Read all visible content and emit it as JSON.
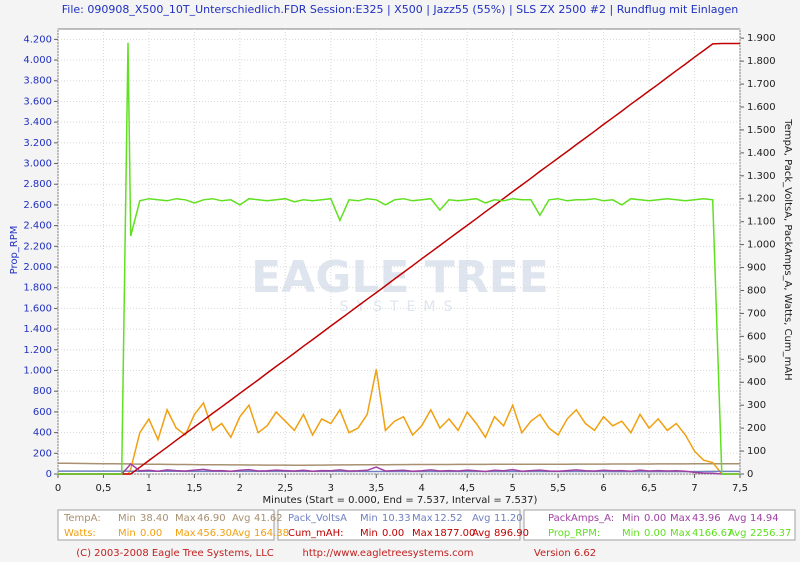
{
  "chart_data": {
    "type": "line",
    "title": "File: 090908_X500_10T_Unterschiedlich.FDR   Session:E325 | X500 | Jazz55 (55%) | SLS ZX 2500 #2 | Rundflug mit Einlagen",
    "x_label": "Minutes (Start = 0.000,  End = 7.537,  Interval = 7.537)",
    "y_label": "Prop_RPM",
    "y2_label": "TempA, Pack_VoltsA, PackAmps_A, Watts, Cum_mAH",
    "watermark": [
      "EAGLE TREE",
      "SYSTEMS"
    ],
    "footer": [
      "(C) 2003-2008 Eagle Tree Systems, LLC",
      "http://www.eagletreesystems.com",
      "Version 6.62"
    ],
    "stat_labels": [
      "Min",
      "Max",
      "Avg"
    ],
    "grid": true,
    "xlim": [
      0,
      7.5
    ],
    "xticks": [
      0,
      {
        "value": 0.5,
        "label": "0,5"
      },
      1,
      {
        "value": 1.5,
        "label": "1,5"
      },
      2,
      {
        "value": 2.5,
        "label": "2,5"
      },
      3,
      {
        "value": 3.5,
        "label": "3,5"
      },
      4,
      {
        "value": 4.5,
        "label": "4,5"
      },
      5,
      {
        "value": 5.5,
        "label": "5,5"
      },
      6,
      {
        "value": 6.5,
        "label": "6,5"
      },
      7,
      {
        "value": 7.5,
        "label": "7,5"
      }
    ],
    "ylim": [
      0,
      4300
    ],
    "yticks": [
      0,
      200,
      400,
      600,
      800,
      {
        "value": 1000,
        "label": "1.000"
      },
      {
        "value": 1200,
        "label": "1.200"
      },
      {
        "value": 1400,
        "label": "1.400"
      },
      {
        "value": 1600,
        "label": "1.600"
      },
      {
        "value": 1800,
        "label": "1.800"
      },
      {
        "value": 2000,
        "label": "2.000"
      },
      {
        "value": 2200,
        "label": "2.200"
      },
      {
        "value": 2400,
        "label": "2.400"
      },
      {
        "value": 2600,
        "label": "2.600"
      },
      {
        "value": 2800,
        "label": "2.800"
      },
      {
        "value": 3000,
        "label": "3.000"
      },
      {
        "value": 3200,
        "label": "3.200"
      },
      {
        "value": 3400,
        "label": "3.400"
      },
      {
        "value": 3600,
        "label": "3.600"
      },
      {
        "value": 3800,
        "label": "3.800"
      },
      {
        "value": 4000,
        "label": "4.000"
      },
      {
        "value": 4200,
        "label": "4.200"
      }
    ],
    "y2lim": [
      0,
      1940
    ],
    "y2ticks": [
      0,
      100,
      200,
      300,
      400,
      500,
      600,
      700,
      800,
      900,
      {
        "value": 1000,
        "label": "1.000"
      },
      {
        "value": 1100,
        "label": "1.100"
      },
      {
        "value": 1200,
        "label": "1.200"
      },
      {
        "value": 1300,
        "label": "1.300"
      },
      {
        "value": 1400,
        "label": "1.400"
      },
      {
        "value": 1500,
        "label": "1.500"
      },
      {
        "value": 1600,
        "label": "1.600"
      },
      {
        "value": 1700,
        "label": "1.700"
      },
      {
        "value": 1800,
        "label": "1.800"
      },
      {
        "value": 1900,
        "label": "1.900"
      }
    ],
    "x": [
      0,
      0.1,
      0.2,
      0.3,
      0.4,
      0.5,
      0.6,
      0.7,
      0.77,
      0.8,
      0.9,
      1,
      1.1,
      1.2,
      1.3,
      1.4,
      1.5,
      1.6,
      1.7,
      1.8,
      1.9,
      2,
      2.1,
      2.2,
      2.3,
      2.4,
      2.5,
      2.6,
      2.7,
      2.8,
      2.9,
      3,
      3.1,
      3.2,
      3.3,
      3.4,
      3.5,
      3.6,
      3.7,
      3.8,
      3.9,
      4,
      4.1,
      4.2,
      4.3,
      4.4,
      4.5,
      4.6,
      4.7,
      4.8,
      4.9,
      5,
      5.1,
      5.2,
      5.3,
      5.4,
      5.5,
      5.6,
      5.7,
      5.8,
      5.9,
      6,
      6.1,
      6.2,
      6.3,
      6.4,
      6.5,
      6.6,
      6.7,
      6.8,
      6.9,
      7,
      7.1,
      7.2,
      7.3,
      7.4,
      7.5
    ],
    "series": [
      {
        "name": "TempA:",
        "color": "#a89070",
        "axis": "y2",
        "stats": [
          "38.40",
          "46.90",
          "41.62"
        ],
        "values": [
          46.9,
          46.6,
          46.2,
          45.8,
          45.4,
          45,
          44.6,
          44.2,
          43.9,
          43.6,
          43.2,
          42.8,
          42.4,
          42,
          41.6,
          41.2,
          40.9,
          40.6,
          40.3,
          40,
          39.8,
          39.6,
          39.4,
          39.2,
          39,
          38.8,
          38.6,
          38.5,
          38.4,
          38.6,
          38.9,
          39.2,
          39.5,
          39.8,
          40,
          40.2,
          40.4,
          40.6,
          40.8,
          41,
          41.2,
          41.3,
          41.4,
          41.5,
          41.6,
          41.7,
          41.8,
          41.9,
          42,
          42.1,
          42.2,
          42.3,
          42.4,
          42.5,
          42.6,
          42.7,
          42.8,
          42.9,
          43,
          43.1,
          43.2,
          43.3,
          43.4,
          43.5,
          43.6,
          43.7,
          43.8,
          43.9,
          44,
          44.1,
          44.2,
          44.3,
          44.4,
          44.5,
          44.6,
          44.7,
          44.8
        ]
      },
      {
        "name": "Watts:",
        "color": "#f0a010",
        "axis": "y2",
        "stats": [
          "0.00",
          "456.30",
          "164.38"
        ],
        "values": [
          0,
          0,
          0,
          0,
          0,
          0,
          0,
          0,
          0,
          20,
          180,
          240,
          150,
          280,
          200,
          170,
          260,
          310,
          190,
          220,
          160,
          250,
          300,
          180,
          210,
          270,
          230,
          190,
          260,
          170,
          240,
          220,
          280,
          180,
          200,
          260,
          456.3,
          190,
          230,
          250,
          170,
          210,
          280,
          200,
          240,
          190,
          270,
          220,
          160,
          250,
          210,
          300,
          180,
          230,
          260,
          200,
          170,
          240,
          280,
          220,
          190,
          250,
          210,
          230,
          180,
          260,
          200,
          240,
          190,
          220,
          170,
          100,
          60,
          50,
          0,
          0,
          0
        ]
      },
      {
        "name": "Pack_VoltsA",
        "color": "#7080c0",
        "axis": "y2",
        "stats": [
          "10.33",
          "12.52",
          "11.20"
        ],
        "values": [
          12.52,
          12.51,
          12.5,
          12.5,
          12.49,
          12.49,
          12.48,
          12.48,
          12.47,
          11.8,
          11.7,
          11.7,
          11.6,
          11.6,
          11.6,
          11.5,
          11.5,
          11.5,
          11.5,
          11.4,
          11.4,
          11.4,
          11.4,
          11.4,
          11.3,
          11.3,
          11.3,
          11.3,
          11.3,
          11.2,
          11.2,
          11.2,
          11.2,
          10.9,
          11.2,
          11.1,
          11.1,
          11.1,
          11.1,
          11.1,
          11.1,
          11,
          11,
          11,
          11,
          11,
          11,
          11,
          10.9,
          10.9,
          10.9,
          10.9,
          10.9,
          10.8,
          10.8,
          10.8,
          10.8,
          10.8,
          10.7,
          10.7,
          10.7,
          10.7,
          10.6,
          10.6,
          10.6,
          10.6,
          10.5,
          10.5,
          10.5,
          10.5,
          10.4,
          10.33,
          10.9,
          11.2,
          11.3,
          11.35,
          11.4
        ]
      },
      {
        "name": "Cum_mAH:",
        "color": "#c00000",
        "axis": "y2",
        "stats": [
          "0.00",
          "1877.00",
          "896.90"
        ],
        "values": [
          0,
          0,
          0,
          0,
          0,
          0,
          0,
          0,
          0,
          0,
          29,
          59,
          88,
          117,
          147,
          176,
          205,
          234,
          264,
          293,
          322,
          352,
          381,
          410,
          440,
          469,
          498,
          527,
          557,
          586,
          615,
          645,
          674,
          703,
          733,
          762,
          791,
          820,
          850,
          879,
          908,
          938,
          967,
          996,
          1026,
          1055,
          1084,
          1113,
          1143,
          1172,
          1201,
          1231,
          1260,
          1289,
          1319,
          1348,
          1377,
          1406,
          1436,
          1465,
          1494,
          1524,
          1553,
          1582,
          1612,
          1641,
          1670,
          1699,
          1729,
          1758,
          1787,
          1817,
          1846,
          1875,
          1877,
          1877,
          1877
        ]
      },
      {
        "name": "PackAmps_A:",
        "color": "#a040a0",
        "axis": "y2",
        "stats": [
          "0.00",
          "43.96",
          "14.94"
        ],
        "values": [
          0,
          0,
          0,
          0,
          0,
          0,
          0,
          0,
          30,
          43.96,
          14,
          16,
          12,
          18,
          15,
          13,
          17,
          20,
          14,
          15,
          12,
          16,
          19,
          13,
          14,
          17,
          15,
          13,
          16,
          12,
          15,
          14,
          18,
          13,
          14,
          16,
          30,
          13,
          15,
          16,
          12,
          14,
          18,
          13,
          15,
          13,
          17,
          14,
          11,
          16,
          14,
          19,
          12,
          15,
          17,
          13,
          12,
          15,
          18,
          14,
          13,
          16,
          14,
          15,
          12,
          17,
          13,
          15,
          13,
          14,
          12,
          7,
          4,
          3,
          0,
          0,
          0
        ]
      },
      {
        "name": "Prop_RPM:",
        "color": "#60e020",
        "stats": [
          "0.00",
          "4166.67",
          "2256.37"
        ],
        "values": [
          0,
          0,
          0,
          0,
          0,
          0,
          0,
          0,
          4166.67,
          2300,
          2640,
          2660,
          2650,
          2640,
          2660,
          2650,
          2620,
          2650,
          2660,
          2640,
          2650,
          2600,
          2660,
          2650,
          2640,
          2650,
          2660,
          2630,
          2650,
          2640,
          2650,
          2660,
          2450,
          2650,
          2640,
          2660,
          2650,
          2600,
          2650,
          2660,
          2640,
          2650,
          2660,
          2550,
          2650,
          2640,
          2650,
          2660,
          2620,
          2650,
          2640,
          2660,
          2650,
          2650,
          2500,
          2650,
          2660,
          2640,
          2650,
          2650,
          2660,
          2640,
          2650,
          2600,
          2660,
          2650,
          2640,
          2650,
          2660,
          2650,
          2640,
          2650,
          2660,
          2650,
          0,
          0,
          0
        ]
      }
    ]
  }
}
